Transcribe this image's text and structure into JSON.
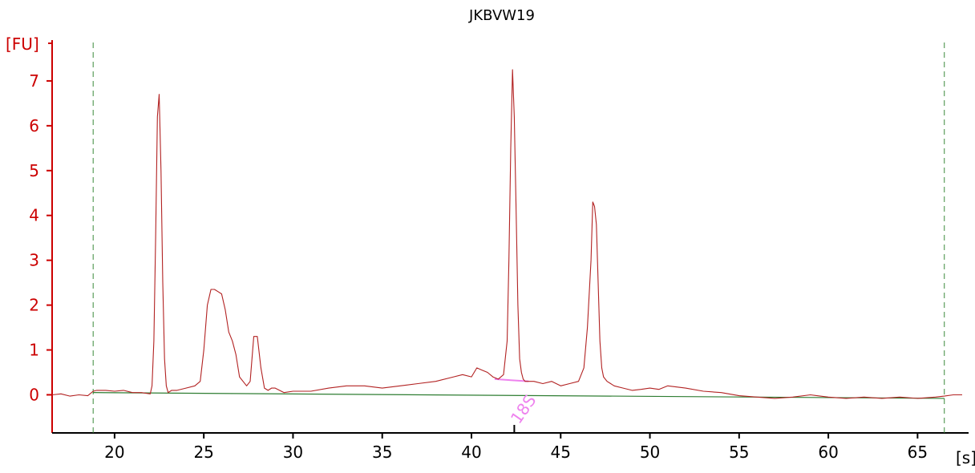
{
  "chart_data": {
    "type": "line",
    "title": "JKBVW19",
    "ylabel": "[FU]",
    "xlabel": "[s]",
    "xlim": [
      16.5,
      67.5
    ],
    "ylim": [
      -0.85,
      8.0
    ],
    "x_ticks": [
      20,
      25,
      30,
      35,
      40,
      45,
      50,
      55,
      60,
      65
    ],
    "y_ticks": [
      0,
      1,
      2,
      3,
      4,
      5,
      6,
      7
    ],
    "grid": false,
    "markers": [
      {
        "label": "",
        "x": 18.8,
        "style": "dashed",
        "color": "#3a8a3a"
      },
      {
        "label": "",
        "x": 66.5,
        "style": "dashed",
        "color": "#3a8a3a"
      }
    ],
    "annotations": [
      {
        "label": "18S",
        "x": 42.4,
        "color": "#ee82ee"
      }
    ],
    "baseline": {
      "x": [
        18.8,
        66.5
      ],
      "y": [
        0.05,
        -0.08
      ],
      "color": "#2e7d32"
    },
    "peak_marker": {
      "x": [
        41.3,
        43.2
      ],
      "y": [
        0.35,
        0.3
      ],
      "color": "#ee82ee"
    },
    "series": [
      {
        "color": "#b22222",
        "x": [
          16.5,
          17.0,
          17.5,
          18.0,
          18.5,
          18.8,
          19.0,
          19.5,
          20.0,
          20.5,
          21.0,
          21.5,
          22.0,
          22.1,
          22.2,
          22.3,
          22.4,
          22.5,
          22.6,
          22.7,
          22.8,
          22.9,
          23.0,
          23.2,
          23.5,
          24.0,
          24.5,
          24.8,
          25.0,
          25.2,
          25.4,
          25.6,
          25.8,
          26.0,
          26.2,
          26.4,
          26.6,
          26.8,
          27.0,
          27.2,
          27.4,
          27.6,
          27.8,
          28.0,
          28.2,
          28.4,
          28.6,
          28.8,
          29.0,
          29.5,
          30.0,
          31.0,
          32.0,
          33.0,
          34.0,
          35.0,
          36.0,
          37.0,
          38.0,
          39.0,
          39.5,
          40.0,
          40.3,
          40.6,
          40.9,
          41.2,
          41.5,
          41.8,
          42.0,
          42.1,
          42.2,
          42.3,
          42.4,
          42.5,
          42.6,
          42.7,
          42.8,
          42.9,
          43.0,
          43.2,
          43.5,
          44.0,
          44.5,
          45.0,
          45.5,
          46.0,
          46.3,
          46.5,
          46.7,
          46.8,
          46.9,
          47.0,
          47.1,
          47.2,
          47.3,
          47.4,
          47.6,
          47.8,
          48.0,
          48.5,
          49.0,
          49.5,
          50.0,
          50.5,
          51.0,
          52.0,
          53.0,
          54.0,
          55.0,
          56.0,
          57.0,
          58.0,
          59.0,
          60.0,
          61.0,
          62.0,
          63.0,
          64.0,
          65.0,
          66.0,
          66.5,
          67.0,
          67.5
        ],
        "y": [
          0.0,
          0.02,
          -0.03,
          0.0,
          -0.02,
          0.08,
          0.1,
          0.1,
          0.08,
          0.1,
          0.05,
          0.05,
          0.02,
          0.2,
          1.2,
          3.5,
          6.2,
          6.7,
          5.0,
          2.5,
          0.8,
          0.2,
          0.05,
          0.1,
          0.1,
          0.15,
          0.2,
          0.3,
          1.0,
          2.0,
          2.35,
          2.35,
          2.3,
          2.25,
          1.9,
          1.4,
          1.2,
          0.9,
          0.4,
          0.3,
          0.2,
          0.3,
          1.3,
          1.3,
          0.6,
          0.15,
          0.1,
          0.15,
          0.15,
          0.05,
          0.08,
          0.08,
          0.15,
          0.2,
          0.2,
          0.15,
          0.2,
          0.25,
          0.3,
          0.4,
          0.45,
          0.4,
          0.6,
          0.55,
          0.5,
          0.4,
          0.35,
          0.45,
          1.2,
          3.0,
          5.5,
          7.25,
          6.2,
          4.2,
          2.0,
          0.8,
          0.5,
          0.35,
          0.3,
          0.3,
          0.3,
          0.25,
          0.3,
          0.2,
          0.25,
          0.3,
          0.6,
          1.5,
          3.0,
          4.3,
          4.2,
          3.8,
          2.5,
          1.2,
          0.6,
          0.4,
          0.3,
          0.25,
          0.2,
          0.15,
          0.1,
          0.12,
          0.15,
          0.12,
          0.2,
          0.15,
          0.08,
          0.05,
          -0.02,
          -0.05,
          -0.08,
          -0.05,
          0.0,
          -0.05,
          -0.08,
          -0.05,
          -0.08,
          -0.05,
          -0.08,
          -0.05,
          -0.03,
          0.0,
          0.0
        ]
      }
    ]
  }
}
